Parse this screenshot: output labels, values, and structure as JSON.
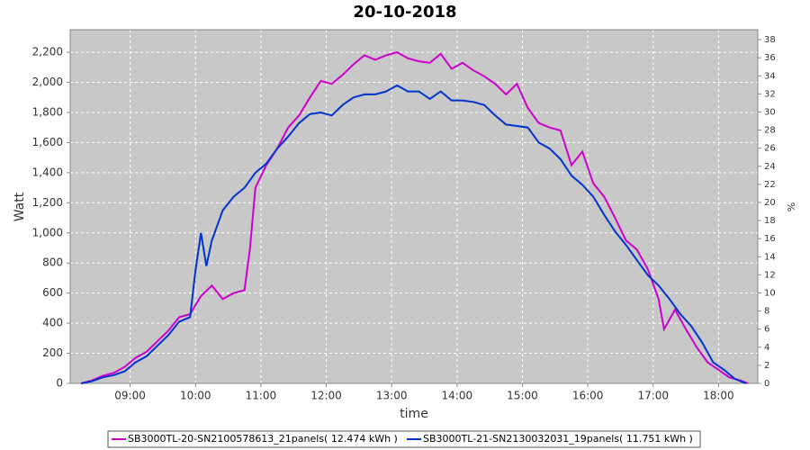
{
  "chart_data": {
    "type": "line",
    "title": "20-10-2018",
    "x_label": "time",
    "y_label": "Watt",
    "y2_label": "%",
    "xlim": [
      "08:05",
      "18:36"
    ],
    "xticks": [
      "09:00",
      "10:00",
      "11:00",
      "12:00",
      "13:00",
      "14:00",
      "15:00",
      "16:00",
      "17:00",
      "18:00"
    ],
    "ylim": [
      0,
      2350
    ],
    "yticks": [
      0,
      200,
      400,
      600,
      800,
      {
        "value": 1000,
        "label": "1,000"
      },
      {
        "value": 1200,
        "label": "1,200"
      },
      {
        "value": 1400,
        "label": "1,400"
      },
      {
        "value": 1600,
        "label": "1,600"
      },
      {
        "value": 1800,
        "label": "1,800"
      },
      {
        "value": 2000,
        "label": "2,000"
      },
      {
        "value": 2200,
        "label": "2,200"
      }
    ],
    "y2lim": [
      0,
      39.1
    ],
    "y2ticks": [
      0,
      2,
      4,
      6,
      8,
      10,
      12,
      14,
      16,
      18,
      20,
      22,
      24,
      26,
      28,
      30,
      32,
      34,
      36,
      38
    ],
    "grid": true,
    "legend": "bottom",
    "series": [
      {
        "name": "SB3000TL-20-SN2100578613_21panels( 12.474 kWh )",
        "color": "#cc00cc",
        "x": [
          "08:15",
          "08:25",
          "08:35",
          "08:45",
          "08:55",
          "09:05",
          "09:15",
          "09:25",
          "09:35",
          "09:45",
          "09:55",
          "10:05",
          "10:15",
          "10:25",
          "10:35",
          "10:45",
          "10:50",
          "10:55",
          "11:05",
          "11:15",
          "11:25",
          "11:35",
          "11:45",
          "11:55",
          "12:05",
          "12:15",
          "12:25",
          "12:35",
          "12:45",
          "12:55",
          "13:05",
          "13:15",
          "13:25",
          "13:35",
          "13:45",
          "13:55",
          "14:05",
          "14:15",
          "14:25",
          "14:35",
          "14:45",
          "14:55",
          "15:05",
          "15:15",
          "15:25",
          "15:35",
          "15:45",
          "15:55",
          "16:05",
          "16:15",
          "16:25",
          "16:35",
          "16:45",
          "16:55",
          "17:05",
          "17:10",
          "17:20",
          "17:30",
          "17:40",
          "17:50",
          "18:00",
          "18:10",
          "18:20",
          "18:27"
        ],
        "values": [
          0,
          20,
          50,
          70,
          110,
          170,
          210,
          280,
          350,
          440,
          460,
          580,
          650,
          560,
          600,
          620,
          900,
          1300,
          1450,
          1560,
          1700,
          1780,
          1900,
          2010,
          1990,
          2050,
          2120,
          2180,
          2150,
          2180,
          2200,
          2160,
          2140,
          2130,
          2190,
          2090,
          2130,
          2080,
          2040,
          1990,
          1920,
          1990,
          1830,
          1730,
          1700,
          1680,
          1450,
          1540,
          1330,
          1240,
          1100,
          950,
          890,
          760,
          560,
          360,
          490,
          360,
          240,
          140,
          90,
          40,
          20,
          0
        ]
      },
      {
        "name": "SB3000TL-21-SN2130032031_19panels( 11.751 kWh )",
        "color": "#0033cc",
        "x": [
          "08:15",
          "08:25",
          "08:35",
          "08:45",
          "08:55",
          "09:05",
          "09:15",
          "09:25",
          "09:35",
          "09:45",
          "09:55",
          "10:00",
          "10:05",
          "10:10",
          "10:15",
          "10:25",
          "10:35",
          "10:45",
          "10:55",
          "11:05",
          "11:15",
          "11:25",
          "11:35",
          "11:45",
          "11:55",
          "12:05",
          "12:15",
          "12:25",
          "12:35",
          "12:45",
          "12:55",
          "13:05",
          "13:15",
          "13:25",
          "13:35",
          "13:45",
          "13:55",
          "14:05",
          "14:15",
          "14:25",
          "14:35",
          "14:45",
          "14:55",
          "15:05",
          "15:15",
          "15:25",
          "15:35",
          "15:45",
          "15:55",
          "16:05",
          "16:15",
          "16:25",
          "16:35",
          "16:45",
          "16:55",
          "17:05",
          "17:15",
          "17:25",
          "17:35",
          "17:45",
          "17:55",
          "18:05",
          "18:15",
          "18:25"
        ],
        "values": [
          0,
          15,
          40,
          55,
          80,
          140,
          180,
          250,
          320,
          410,
          440,
          750,
          1000,
          780,
          950,
          1150,
          1240,
          1300,
          1400,
          1460,
          1560,
          1640,
          1730,
          1790,
          1800,
          1780,
          1850,
          1900,
          1920,
          1920,
          1940,
          1980,
          1940,
          1940,
          1890,
          1940,
          1880,
          1880,
          1870,
          1850,
          1780,
          1720,
          1710,
          1700,
          1600,
          1560,
          1490,
          1380,
          1320,
          1240,
          1120,
          1010,
          920,
          820,
          720,
          650,
          560,
          460,
          380,
          270,
          140,
          90,
          30,
          0
        ]
      }
    ]
  }
}
